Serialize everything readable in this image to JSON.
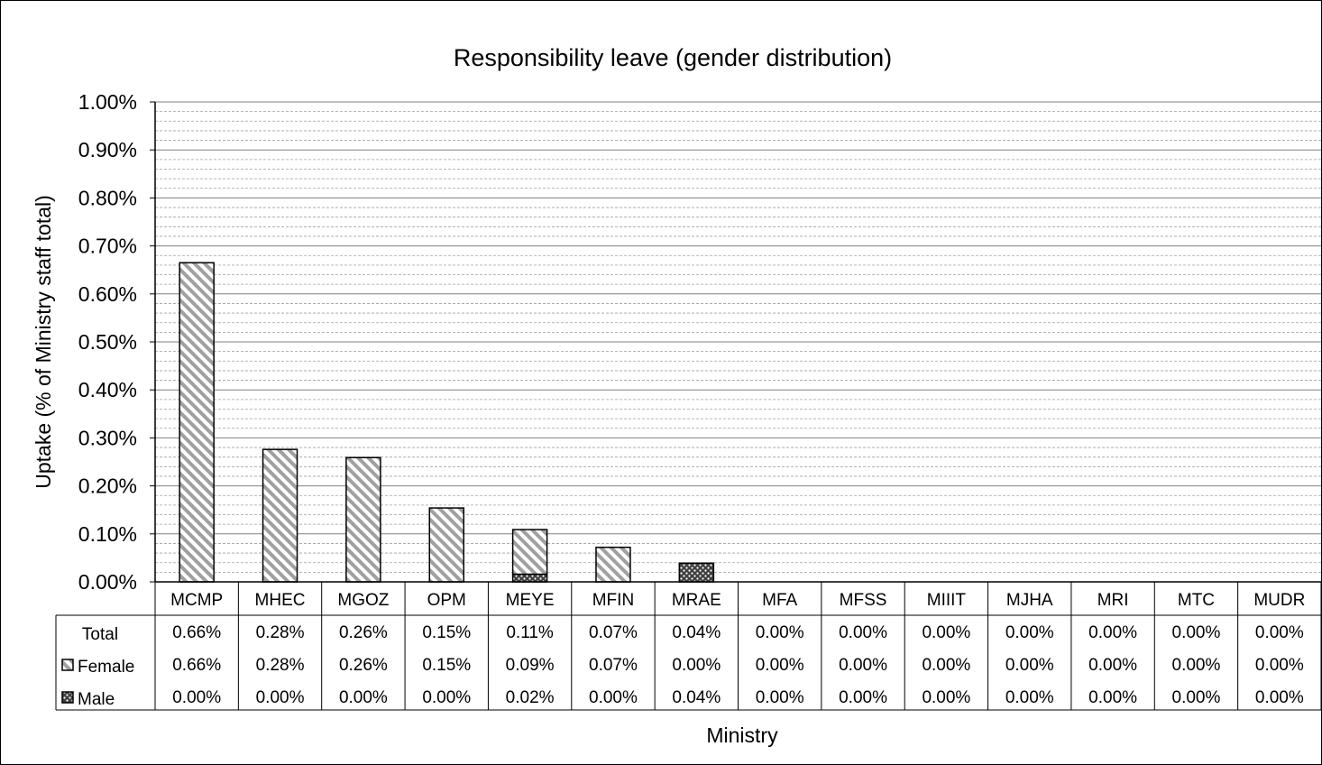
{
  "chart_data": {
    "type": "bar",
    "stacked": true,
    "title": "Responsibility leave (gender distribution)",
    "xlabel": "Ministry",
    "ylabel": "Uptake (% of Ministry staff total)",
    "ylim": [
      0,
      1.0
    ],
    "y_tick_step": 0.1,
    "y_tick_format": "percent_2dp",
    "grid": true,
    "legend": "data-table-left",
    "categories": [
      "MCMP",
      "MHEC",
      "MGOZ",
      "OPM",
      "MEYE",
      "MFIN",
      "MRAE",
      "MFA",
      "MFSS",
      "MIIIT",
      "MJHA",
      "MRI",
      "MTC",
      "MUDR"
    ],
    "series": [
      {
        "name": "Female",
        "pattern": "diagonal-hatch",
        "values": [
          0.665,
          0.276,
          0.259,
          0.154,
          0.093,
          0.072,
          0.0,
          0,
          0,
          0,
          0,
          0,
          0,
          0
        ]
      },
      {
        "name": "Male",
        "pattern": "dotted",
        "values": [
          0.0,
          0.0,
          0.0,
          0.0,
          0.016,
          0.0,
          0.039,
          0,
          0,
          0,
          0,
          0,
          0,
          0
        ]
      }
    ],
    "data_table": {
      "rows": [
        {
          "label": "Total",
          "values": [
            "0.66%",
            "0.28%",
            "0.26%",
            "0.15%",
            "0.11%",
            "0.07%",
            "0.04%",
            "0.00%",
            "0.00%",
            "0.00%",
            "0.00%",
            "0.00%",
            "0.00%",
            "0.00%"
          ]
        },
        {
          "label": "Female",
          "values": [
            "0.66%",
            "0.28%",
            "0.26%",
            "0.15%",
            "0.09%",
            "0.07%",
            "0.00%",
            "0.00%",
            "0.00%",
            "0.00%",
            "0.00%",
            "0.00%",
            "0.00%",
            "0.00%"
          ]
        },
        {
          "label": "Male",
          "values": [
            "0.00%",
            "0.00%",
            "0.00%",
            "0.00%",
            "0.02%",
            "0.00%",
            "0.04%",
            "0.00%",
            "0.00%",
            "0.00%",
            "0.00%",
            "0.00%",
            "0.00%",
            "0.00%"
          ]
        }
      ]
    }
  },
  "colors": {
    "axis": "#000000",
    "grid_major": "#808080",
    "grid_minor": "#a0a0a0",
    "hatch_fg": "#a0a0a0",
    "bar_fill": "#ffffff",
    "dot_fg": "#000000"
  }
}
